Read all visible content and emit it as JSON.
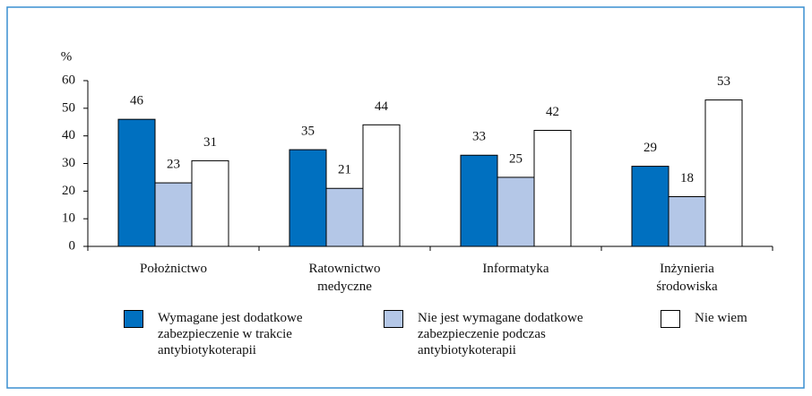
{
  "chart_data": {
    "type": "bar",
    "ylabel": "%",
    "categories": [
      "Położnictwo",
      "Ratownictwo medyczne",
      "Informatyka",
      "Inżynieria środowiska"
    ],
    "series": [
      {
        "name": "Wymagane jest dodatkowe zabezpieczenie w trakcie antybiotykoterapii",
        "color": "#0070c0",
        "values": [
          46,
          35,
          33,
          29
        ]
      },
      {
        "name": "Nie jest wymagane dodatkowe zabezpieczenie podczas antybiotykoterapii",
        "color": "#b4c7e7",
        "values": [
          23,
          21,
          25,
          18
        ]
      },
      {
        "name": "Nie wiem",
        "color": "#ffffff",
        "values": [
          31,
          44,
          42,
          53
        ]
      }
    ],
    "ylim": [
      0,
      60
    ],
    "yticks": [
      0,
      10,
      20,
      30,
      40,
      50,
      60
    ],
    "grid": false
  }
}
